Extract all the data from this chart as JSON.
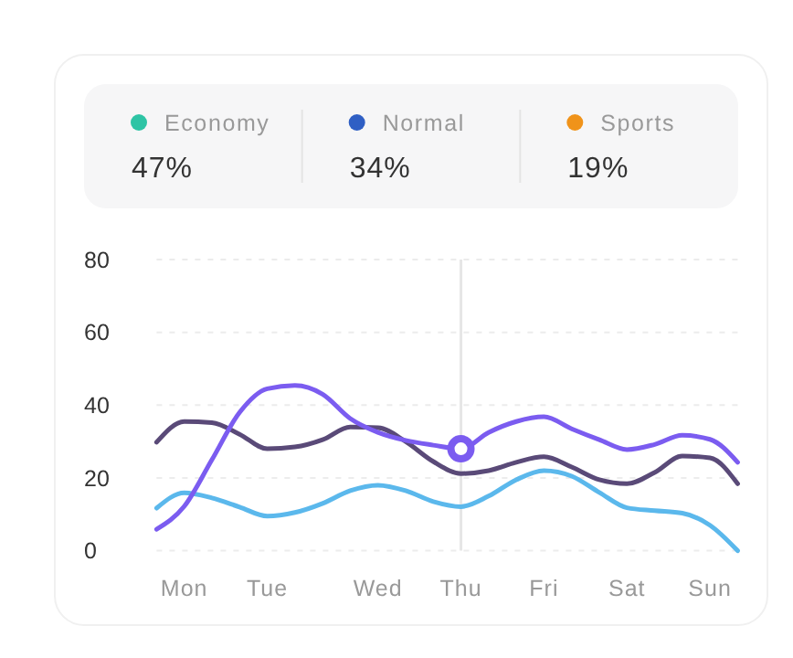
{
  "chart_data": [
    {
      "type": "other",
      "categories": [
        "Economy",
        "Normal",
        "Sports"
      ],
      "values": [
        47,
        34,
        19
      ],
      "value_labels": [
        "47%",
        "34%",
        "19%"
      ]
    },
    {
      "type": "line",
      "categories": [
        null,
        "Mon",
        null,
        null,
        "Tue",
        null,
        null,
        null,
        "Wed",
        null,
        null,
        "Thu",
        null,
        null,
        "Fri",
        null,
        null,
        "Sat",
        null,
        null,
        "Sun",
        null
      ],
      "ylim": [
        0,
        80
      ],
      "yticks": [
        0,
        20,
        40,
        60,
        80
      ],
      "grid": "y",
      "ref_lines": [
        {
          "axis": "x",
          "value": "Thu",
          "color": "#e6e6e6"
        }
      ],
      "series": [
        {
          "color": "#5bb8ec",
          "values": [
            11.7,
            15.9,
            14.5,
            12,
            9.5,
            10.5,
            13,
            16.5,
            18,
            16.5,
            13.5,
            12.1,
            15,
            19.5,
            22,
            20.5,
            16,
            11.8,
            11,
            10.3,
            7,
            0
          ]
        },
        {
          "color": "#5a4a78",
          "values": [
            29.8,
            35.5,
            35.2,
            32,
            28,
            28.5,
            30.5,
            34,
            33.8,
            30,
            24.5,
            21.2,
            22,
            24.3,
            25.8,
            23,
            19.5,
            18.4,
            21.5,
            26,
            25.5,
            18.4
          ]
        },
        {
          "color": "#7b5cf0",
          "values": [
            5.9,
            12.2,
            25,
            38,
            44.5,
            45.4,
            43,
            36.3,
            32.5,
            30.3,
            29,
            28,
            32.5,
            35.5,
            36.8,
            33.5,
            30.5,
            27.8,
            29.2,
            31.7,
            30.6,
            24.3
          ]
        },
        {
          "type": "scatter",
          "marker": "circle",
          "color": "#7b5cf0",
          "x": [
            "Thu"
          ],
          "values": [
            28
          ]
        }
      ]
    }
  ]
}
